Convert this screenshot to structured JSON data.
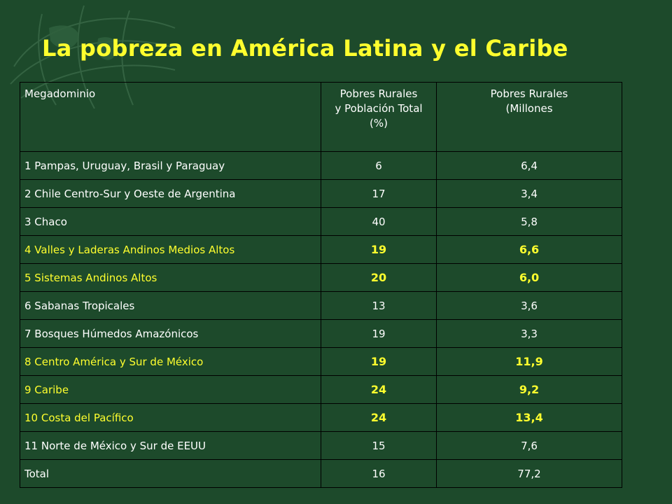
{
  "slide": {
    "title": "La pobreza en América Latina y el Caribe",
    "colors": {
      "background": "#1d4a2b",
      "title": "#ffff2e",
      "text": "#ffffff",
      "highlight": "#ffff2e",
      "border": "#000000"
    }
  },
  "table": {
    "headers": {
      "col1": "Megadominio",
      "col2_line1": "Pobres Rurales",
      "col2_line2": "y Población Total",
      "col2_line3": "(%)",
      "col3_line1": "Pobres Rurales",
      "col3_line2": "(Millones"
    },
    "rows": [
      {
        "name": "1 Pampas, Uruguay, Brasil y Paraguay",
        "pct": "6",
        "millions": "6,4",
        "highlight": false
      },
      {
        "name": "2 Chile Centro-Sur y Oeste de Argentina",
        "pct": "17",
        "millions": "3,4",
        "highlight": false
      },
      {
        "name": "3 Chaco",
        "pct": "40",
        "millions": "5,8",
        "highlight": false
      },
      {
        "name": "4 Valles y Laderas Andinos Medios Altos",
        "pct": "19",
        "millions": "6,6",
        "highlight": true
      },
      {
        "name": "5 Sistemas Andinos Altos",
        "pct": "20",
        "millions": "6,0",
        "highlight": true
      },
      {
        "name": "6 Sabanas Tropicales",
        "pct": "13",
        "millions": "3,6",
        "highlight": false
      },
      {
        "name": "7 Bosques Húmedos Amazónicos",
        "pct": "19",
        "millions": "3,3",
        "highlight": false
      },
      {
        "name": "8 Centro América y Sur de México",
        "pct": "19",
        "millions": "11,9",
        "highlight": true
      },
      {
        "name": "9 Caribe",
        "pct": "24",
        "millions": "9,2",
        "highlight": true
      },
      {
        "name": "10 Costa del Pacífico",
        "pct": "24",
        "millions": "13,4",
        "highlight": true
      },
      {
        "name": "11 Norte de México y Sur de EEUU",
        "pct": "15",
        "millions": "7,6",
        "highlight": false
      },
      {
        "name": "Total",
        "pct": "16",
        "millions": "77,2",
        "highlight": false
      }
    ]
  }
}
